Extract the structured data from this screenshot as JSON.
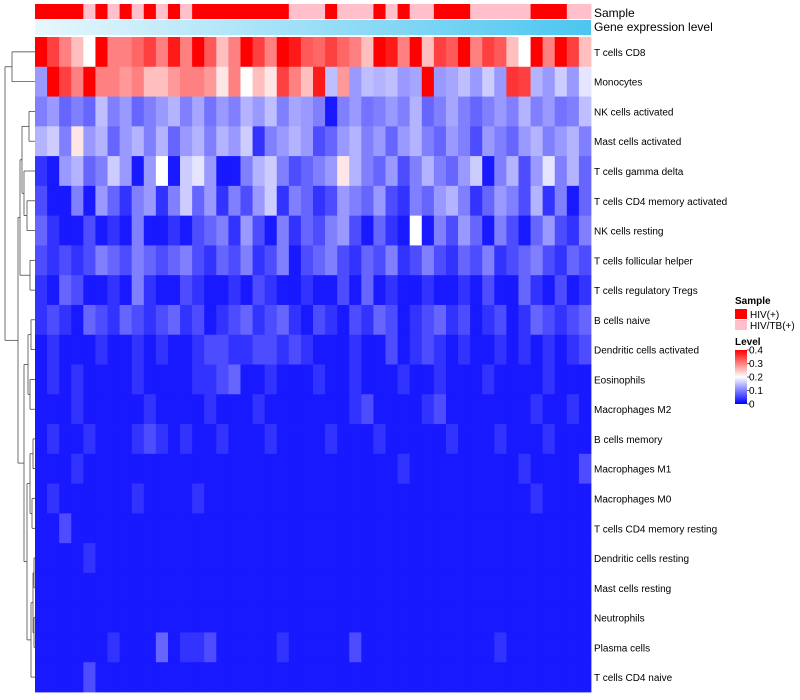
{
  "chart_data": {
    "type": "heatmap",
    "title": "",
    "annotation_tracks": [
      {
        "label": "Sample",
        "legend_title": "Sample",
        "categories": [
          "HIV(+)",
          "HIV/TB(+)"
        ],
        "colors": {
          "HIV(+)": "#ff0000",
          "HIV/TB(+)": "#ffc0cb"
        },
        "values": [
          "HIV(+)",
          "HIV(+)",
          "HIV(+)",
          "HIV(+)",
          "HIV/TB(+)",
          "HIV(+)",
          "HIV/TB(+)",
          "HIV(+)",
          "HIV/TB(+)",
          "HIV(+)",
          "HIV/TB(+)",
          "HIV(+)",
          "HIV/TB(+)",
          "HIV(+)",
          "HIV(+)",
          "HIV(+)",
          "HIV(+)",
          "HIV(+)",
          "HIV(+)",
          "HIV(+)",
          "HIV(+)",
          "HIV/TB(+)",
          "HIV/TB(+)",
          "HIV/TB(+)",
          "HIV(+)",
          "HIV/TB(+)",
          "HIV/TB(+)",
          "HIV/TB(+)",
          "HIV(+)",
          "HIV/TB(+)",
          "HIV(+)",
          "HIV/TB(+)",
          "HIV/TB(+)",
          "HIV(+)",
          "HIV(+)",
          "HIV(+)",
          "HIV/TB(+)",
          "HIV/TB(+)",
          "HIV/TB(+)",
          "HIV/TB(+)",
          "HIV/TB(+)",
          "HIV(+)",
          "HIV(+)",
          "HIV(+)",
          "HIV/TB(+)",
          "HIV/TB(+)"
        ]
      },
      {
        "label": "Gene expression level",
        "type": "gradient",
        "from": "#e8f7fd",
        "to": "#4cc6f0"
      }
    ],
    "rows": [
      "T cells CD8",
      "Monocytes",
      "NK cells activated",
      "Mast cells activated",
      "T cells gamma delta",
      "T cells CD4 memory activated",
      "NK cells resting",
      "T cells follicular helper",
      "T cells regulatory  Tregs",
      "B cells naive",
      "Dendritic cells activated",
      "Eosinophils",
      "Macrophages M2",
      "B cells memory",
      "Macrophages M1",
      "Macrophages M0",
      "T cells CD4 memory resting",
      "Dendritic cells resting",
      "Mast cells resting",
      "Neutrophils",
      "Plasma cells",
      "T cells CD4 naive"
    ],
    "n_columns": 46,
    "matrix": [
      [
        0.4,
        0.35,
        0.3,
        0.25,
        0.2,
        0.4,
        0.3,
        0.3,
        0.32,
        0.35,
        0.3,
        0.38,
        0.3,
        0.4,
        0.33,
        0.25,
        0.3,
        0.4,
        0.35,
        0.3,
        0.4,
        0.38,
        0.33,
        0.32,
        0.35,
        0.32,
        0.3,
        0.25,
        0.4,
        0.38,
        0.3,
        0.4,
        0.25,
        0.35,
        0.33,
        0.4,
        0.3,
        0.35,
        0.33,
        0.25,
        0.2,
        0.4,
        0.3,
        0.4,
        0.35,
        0.25
      ],
      [
        0.12,
        0.4,
        0.35,
        0.3,
        0.4,
        0.3,
        0.3,
        0.28,
        0.3,
        0.25,
        0.25,
        0.28,
        0.3,
        0.3,
        0.28,
        0.22,
        0.3,
        0.2,
        0.25,
        0.22,
        0.35,
        0.3,
        0.25,
        0.38,
        0.15,
        0.28,
        0.12,
        0.15,
        0.14,
        0.15,
        0.12,
        0.13,
        0.4,
        0.12,
        0.13,
        0.15,
        0.12,
        0.16,
        0.12,
        0.36,
        0.35,
        0.14,
        0.12,
        0.16,
        0.12,
        0.18
      ],
      [
        0.1,
        0.12,
        0.08,
        0.1,
        0.08,
        0.15,
        0.1,
        0.12,
        0.08,
        0.1,
        0.12,
        0.14,
        0.1,
        0.13,
        0.09,
        0.12,
        0.1,
        0.14,
        0.12,
        0.15,
        0.1,
        0.13,
        0.12,
        0.1,
        0.02,
        0.1,
        0.12,
        0.09,
        0.1,
        0.12,
        0.1,
        0.14,
        0.08,
        0.1,
        0.13,
        0.1,
        0.08,
        0.1,
        0.12,
        0.1,
        0.14,
        0.1,
        0.12,
        0.09,
        0.1,
        0.15
      ],
      [
        0.14,
        0.16,
        0.1,
        0.22,
        0.12,
        0.14,
        0.08,
        0.12,
        0.14,
        0.1,
        0.14,
        0.08,
        0.12,
        0.14,
        0.1,
        0.14,
        0.12,
        0.16,
        0.04,
        0.1,
        0.12,
        0.14,
        0.12,
        0.06,
        0.08,
        0.12,
        0.14,
        0.1,
        0.12,
        0.08,
        0.12,
        0.14,
        0.1,
        0.08,
        0.12,
        0.1,
        0.06,
        0.12,
        0.1,
        0.08,
        0.12,
        0.14,
        0.1,
        0.12,
        0.14,
        0.1
      ],
      [
        0.04,
        0.02,
        0.12,
        0.14,
        0.08,
        0.1,
        0.16,
        0.12,
        0.02,
        0.12,
        0.2,
        0.02,
        0.16,
        0.18,
        0.12,
        0.02,
        0.02,
        0.1,
        0.14,
        0.16,
        0.1,
        0.06,
        0.08,
        0.1,
        0.12,
        0.22,
        0.14,
        0.1,
        0.08,
        0.12,
        0.06,
        0.1,
        0.14,
        0.1,
        0.08,
        0.12,
        0.16,
        0.02,
        0.1,
        0.14,
        0.06,
        0.12,
        0.18,
        0.1,
        0.14,
        0.08
      ],
      [
        0.06,
        0.02,
        0.02,
        0.1,
        0.02,
        0.12,
        0.08,
        0.04,
        0.1,
        0.12,
        0.04,
        0.1,
        0.16,
        0.08,
        0.12,
        0.04,
        0.1,
        0.06,
        0.12,
        0.16,
        0.04,
        0.1,
        0.08,
        0.04,
        0.06,
        0.12,
        0.1,
        0.08,
        0.12,
        0.06,
        0.04,
        0.1,
        0.08,
        0.12,
        0.14,
        0.1,
        0.04,
        0.08,
        0.12,
        0.1,
        0.06,
        0.14,
        0.04,
        0.1,
        0.02,
        0.08
      ],
      [
        0.08,
        0.04,
        0.02,
        0.02,
        0.06,
        0.02,
        0.04,
        0.02,
        0.1,
        0.02,
        0.02,
        0.04,
        0.02,
        0.06,
        0.08,
        0.1,
        0.04,
        0.12,
        0.06,
        0.02,
        0.1,
        0.04,
        0.08,
        0.06,
        0.1,
        0.12,
        0.06,
        0.02,
        0.08,
        0.04,
        0.02,
        0.2,
        0.02,
        0.1,
        0.06,
        0.12,
        0.08,
        0.02,
        0.1,
        0.06,
        0.02,
        0.08,
        0.12,
        0.06,
        0.04,
        0.1
      ],
      [
        0.06,
        0.04,
        0.06,
        0.04,
        0.06,
        0.1,
        0.08,
        0.06,
        0.1,
        0.08,
        0.06,
        0.08,
        0.1,
        0.06,
        0.04,
        0.08,
        0.06,
        0.1,
        0.04,
        0.06,
        0.1,
        0.02,
        0.06,
        0.08,
        0.1,
        0.06,
        0.04,
        0.08,
        0.06,
        0.1,
        0.04,
        0.06,
        0.1,
        0.06,
        0.04,
        0.08,
        0.06,
        0.1,
        0.04,
        0.06,
        0.08,
        0.1,
        0.06,
        0.04,
        0.08,
        0.06
      ],
      [
        0.04,
        0.02,
        0.08,
        0.06,
        0.02,
        0.02,
        0.04,
        0.02,
        0.1,
        0.04,
        0.02,
        0.02,
        0.06,
        0.04,
        0.02,
        0.02,
        0.04,
        0.02,
        0.06,
        0.04,
        0.02,
        0.02,
        0.04,
        0.02,
        0.02,
        0.06,
        0.02,
        0.08,
        0.02,
        0.04,
        0.02,
        0.02,
        0.04,
        0.02,
        0.02,
        0.04,
        0.02,
        0.06,
        0.02,
        0.02,
        0.08,
        0.04,
        0.02,
        0.06,
        0.02,
        0.04
      ],
      [
        0.04,
        0.06,
        0.04,
        0.02,
        0.08,
        0.06,
        0.04,
        0.08,
        0.06,
        0.04,
        0.06,
        0.08,
        0.04,
        0.06,
        0.02,
        0.04,
        0.06,
        0.08,
        0.04,
        0.06,
        0.08,
        0.04,
        0.02,
        0.06,
        0.04,
        0.02,
        0.06,
        0.04,
        0.08,
        0.06,
        0.02,
        0.04,
        0.06,
        0.08,
        0.04,
        0.06,
        0.02,
        0.04,
        0.06,
        0.02,
        0.04,
        0.08,
        0.06,
        0.04,
        0.06,
        0.08
      ],
      [
        0.02,
        0.04,
        0.02,
        0.02,
        0.02,
        0.04,
        0.02,
        0.02,
        0.04,
        0.02,
        0.04,
        0.02,
        0.02,
        0.04,
        0.06,
        0.06,
        0.04,
        0.04,
        0.06,
        0.06,
        0.04,
        0.06,
        0.04,
        0.02,
        0.02,
        0.02,
        0.04,
        0.02,
        0.02,
        0.06,
        0.02,
        0.04,
        0.06,
        0.04,
        0.02,
        0.04,
        0.02,
        0.02,
        0.04,
        0.02,
        0.04,
        0.02,
        0.04,
        0.02,
        0.04,
        0.06
      ],
      [
        0.02,
        0.04,
        0.02,
        0.04,
        0.02,
        0.02,
        0.02,
        0.02,
        0.04,
        0.02,
        0.02,
        0.02,
        0.02,
        0.04,
        0.04,
        0.06,
        0.08,
        0.02,
        0.02,
        0.04,
        0.02,
        0.02,
        0.02,
        0.04,
        0.02,
        0.02,
        0.04,
        0.02,
        0.02,
        0.02,
        0.04,
        0.02,
        0.02,
        0.04,
        0.02,
        0.02,
        0.02,
        0.04,
        0.02,
        0.02,
        0.02,
        0.02,
        0.04,
        0.02,
        0.02,
        0.02
      ],
      [
        0.02,
        0.02,
        0.02,
        0.04,
        0.02,
        0.02,
        0.02,
        0.02,
        0.02,
        0.04,
        0.02,
        0.02,
        0.02,
        0.02,
        0.04,
        0.02,
        0.02,
        0.02,
        0.04,
        0.02,
        0.02,
        0.02,
        0.02,
        0.02,
        0.02,
        0.02,
        0.04,
        0.06,
        0.02,
        0.02,
        0.02,
        0.02,
        0.04,
        0.06,
        0.02,
        0.02,
        0.02,
        0.02,
        0.02,
        0.02,
        0.02,
        0.04,
        0.02,
        0.02,
        0.04,
        0.02
      ],
      [
        0.02,
        0.04,
        0.02,
        0.02,
        0.04,
        0.02,
        0.02,
        0.02,
        0.04,
        0.06,
        0.04,
        0.02,
        0.04,
        0.02,
        0.02,
        0.04,
        0.02,
        0.02,
        0.02,
        0.04,
        0.02,
        0.02,
        0.02,
        0.02,
        0.04,
        0.02,
        0.02,
        0.02,
        0.04,
        0.02,
        0.02,
        0.02,
        0.02,
        0.02,
        0.04,
        0.02,
        0.02,
        0.02,
        0.04,
        0.02,
        0.02,
        0.02,
        0.04,
        0.02,
        0.02,
        0.02
      ],
      [
        0.02,
        0.02,
        0.02,
        0.04,
        0.02,
        0.02,
        0.02,
        0.02,
        0.02,
        0.02,
        0.02,
        0.02,
        0.02,
        0.02,
        0.02,
        0.02,
        0.02,
        0.02,
        0.02,
        0.02,
        0.02,
        0.02,
        0.02,
        0.02,
        0.02,
        0.02,
        0.02,
        0.02,
        0.02,
        0.02,
        0.04,
        0.02,
        0.02,
        0.02,
        0.02,
        0.02,
        0.02,
        0.02,
        0.02,
        0.02,
        0.04,
        0.02,
        0.02,
        0.02,
        0.02,
        0.06
      ],
      [
        0.02,
        0.04,
        0.02,
        0.02,
        0.02,
        0.02,
        0.02,
        0.02,
        0.04,
        0.02,
        0.02,
        0.02,
        0.02,
        0.04,
        0.02,
        0.02,
        0.02,
        0.02,
        0.02,
        0.02,
        0.02,
        0.02,
        0.02,
        0.02,
        0.02,
        0.02,
        0.02,
        0.02,
        0.02,
        0.02,
        0.02,
        0.02,
        0.02,
        0.02,
        0.02,
        0.02,
        0.02,
        0.02,
        0.02,
        0.02,
        0.02,
        0.04,
        0.02,
        0.02,
        0.02,
        0.02
      ],
      [
        0.02,
        0.02,
        0.06,
        0.02,
        0.02,
        0.02,
        0.02,
        0.02,
        0.02,
        0.02,
        0.02,
        0.02,
        0.02,
        0.02,
        0.02,
        0.02,
        0.02,
        0.02,
        0.02,
        0.02,
        0.02,
        0.02,
        0.02,
        0.02,
        0.02,
        0.02,
        0.02,
        0.02,
        0.02,
        0.02,
        0.02,
        0.02,
        0.02,
        0.02,
        0.02,
        0.02,
        0.02,
        0.02,
        0.02,
        0.02,
        0.02,
        0.02,
        0.02,
        0.02,
        0.02,
        0.02
      ],
      [
        0.02,
        0.02,
        0.02,
        0.02,
        0.04,
        0.02,
        0.02,
        0.02,
        0.02,
        0.02,
        0.02,
        0.02,
        0.02,
        0.02,
        0.02,
        0.02,
        0.02,
        0.02,
        0.02,
        0.02,
        0.02,
        0.02,
        0.02,
        0.02,
        0.02,
        0.02,
        0.02,
        0.02,
        0.02,
        0.02,
        0.02,
        0.02,
        0.02,
        0.02,
        0.02,
        0.02,
        0.02,
        0.02,
        0.02,
        0.02,
        0.02,
        0.02,
        0.02,
        0.02,
        0.02,
        0.02
      ],
      [
        0.02,
        0.02,
        0.02,
        0.02,
        0.02,
        0.02,
        0.02,
        0.02,
        0.02,
        0.02,
        0.02,
        0.02,
        0.02,
        0.02,
        0.02,
        0.02,
        0.02,
        0.02,
        0.02,
        0.02,
        0.02,
        0.02,
        0.02,
        0.02,
        0.02,
        0.02,
        0.02,
        0.02,
        0.02,
        0.02,
        0.02,
        0.02,
        0.02,
        0.02,
        0.02,
        0.02,
        0.02,
        0.02,
        0.02,
        0.02,
        0.02,
        0.02,
        0.02,
        0.02,
        0.02,
        0.02
      ],
      [
        0.02,
        0.02,
        0.02,
        0.02,
        0.02,
        0.02,
        0.02,
        0.02,
        0.02,
        0.02,
        0.02,
        0.02,
        0.02,
        0.02,
        0.02,
        0.02,
        0.02,
        0.02,
        0.02,
        0.02,
        0.02,
        0.02,
        0.02,
        0.02,
        0.02,
        0.02,
        0.02,
        0.02,
        0.02,
        0.02,
        0.02,
        0.02,
        0.02,
        0.02,
        0.02,
        0.02,
        0.02,
        0.02,
        0.02,
        0.02,
        0.02,
        0.02,
        0.02,
        0.02,
        0.02,
        0.02
      ],
      [
        0.02,
        0.02,
        0.02,
        0.02,
        0.02,
        0.02,
        0.04,
        0.02,
        0.02,
        0.02,
        0.08,
        0.02,
        0.04,
        0.04,
        0.06,
        0.02,
        0.02,
        0.02,
        0.02,
        0.02,
        0.04,
        0.02,
        0.02,
        0.02,
        0.02,
        0.02,
        0.06,
        0.02,
        0.02,
        0.02,
        0.02,
        0.02,
        0.02,
        0.02,
        0.02,
        0.02,
        0.02,
        0.02,
        0.04,
        0.02,
        0.02,
        0.02,
        0.02,
        0.02,
        0.02,
        0.02
      ],
      [
        0.02,
        0.02,
        0.02,
        0.02,
        0.06,
        0.02,
        0.02,
        0.02,
        0.02,
        0.02,
        0.02,
        0.02,
        0.02,
        0.02,
        0.02,
        0.02,
        0.02,
        0.02,
        0.02,
        0.02,
        0.02,
        0.02,
        0.02,
        0.02,
        0.02,
        0.02,
        0.02,
        0.02,
        0.02,
        0.02,
        0.02,
        0.02,
        0.02,
        0.02,
        0.02,
        0.02,
        0.02,
        0.02,
        0.02,
        0.02,
        0.02,
        0.02,
        0.02,
        0.02,
        0.02,
        0.02
      ]
    ],
    "color_scale": {
      "legend_title": "Level",
      "min": 0,
      "max": 0.4,
      "ticks": [
        "0.4",
        "0.3",
        "0.2",
        "0.1",
        "0"
      ],
      "tick_values": [
        0.4,
        0.3,
        0.2,
        0.1,
        0
      ],
      "low_color": "#0000ff",
      "mid_color": "#ffffff",
      "high_color": "#ff0000",
      "mid_value": 0.2
    },
    "dendrogram": {
      "side": "left",
      "clustered": "rows"
    }
  }
}
